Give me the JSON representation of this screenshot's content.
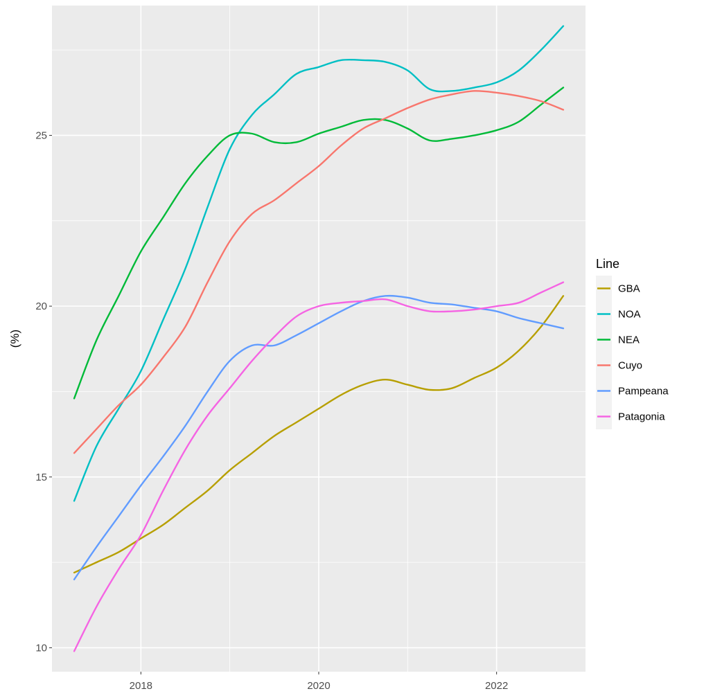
{
  "chart_data": {
    "type": "line",
    "title": "",
    "xlabel": "",
    "ylabel": "(%)",
    "xlim": [
      2017.0,
      2023.0
    ],
    "ylim": [
      9.3,
      28.8
    ],
    "x_ticks": [
      2018,
      2020,
      2022
    ],
    "x_tick_labels": [
      "2018",
      "2020",
      "2022"
    ],
    "y_ticks": [
      10,
      15,
      20,
      25
    ],
    "y_tick_labels": [
      "10",
      "15",
      "20",
      "25"
    ],
    "grid": true,
    "legend": {
      "title": "Line",
      "position": "right"
    },
    "x": [
      2017.25,
      2017.5,
      2017.75,
      2018.0,
      2018.25,
      2018.5,
      2018.75,
      2019.0,
      2019.25,
      2019.5,
      2019.75,
      2020.0,
      2020.25,
      2020.5,
      2020.75,
      2021.0,
      2021.25,
      2021.5,
      2021.75,
      2022.0,
      2022.25,
      2022.5,
      2022.75
    ],
    "series": [
      {
        "name": "GBA",
        "color": "#b79f00",
        "values": [
          12.2,
          12.5,
          12.8,
          13.2,
          13.6,
          14.1,
          14.6,
          15.2,
          15.7,
          16.2,
          16.6,
          17.0,
          17.4,
          17.7,
          17.85,
          17.7,
          17.55,
          17.6,
          17.9,
          18.2,
          18.7,
          19.4,
          20.3
        ]
      },
      {
        "name": "NOA",
        "color": "#00bfc4",
        "values": [
          14.3,
          15.9,
          17.0,
          18.1,
          19.6,
          21.1,
          22.9,
          24.6,
          25.6,
          26.2,
          26.8,
          27.0,
          27.2,
          27.2,
          27.15,
          26.9,
          26.35,
          26.3,
          26.4,
          26.55,
          26.9,
          27.5,
          28.2
        ]
      },
      {
        "name": "NEA",
        "color": "#00ba38",
        "values": [
          17.3,
          19.0,
          20.3,
          21.6,
          22.6,
          23.6,
          24.4,
          25.0,
          25.05,
          24.8,
          24.8,
          25.05,
          25.25,
          25.45,
          25.45,
          25.2,
          24.85,
          24.9,
          25.0,
          25.15,
          25.4,
          25.9,
          26.4
        ]
      },
      {
        "name": "Cuyo",
        "color": "#f8766d",
        "values": [
          15.7,
          16.4,
          17.1,
          17.7,
          18.5,
          19.4,
          20.7,
          21.9,
          22.7,
          23.1,
          23.6,
          24.1,
          24.7,
          25.2,
          25.5,
          25.8,
          26.05,
          26.2,
          26.3,
          26.25,
          26.15,
          26.0,
          25.75
        ]
      },
      {
        "name": "Pampeana",
        "color": "#619cff",
        "values": [
          12.0,
          12.95,
          13.85,
          14.75,
          15.6,
          16.5,
          17.5,
          18.4,
          18.85,
          18.85,
          19.15,
          19.5,
          19.85,
          20.15,
          20.3,
          20.25,
          20.1,
          20.05,
          19.95,
          19.85,
          19.65,
          19.5,
          19.35
        ]
      },
      {
        "name": "Patagonia",
        "color": "#f564e3",
        "values": [
          9.9,
          11.2,
          12.3,
          13.3,
          14.6,
          15.8,
          16.8,
          17.6,
          18.4,
          19.1,
          19.7,
          20.0,
          20.1,
          20.15,
          20.2,
          20.0,
          19.85,
          19.85,
          19.9,
          20.0,
          20.1,
          20.4,
          20.7
        ]
      }
    ]
  }
}
